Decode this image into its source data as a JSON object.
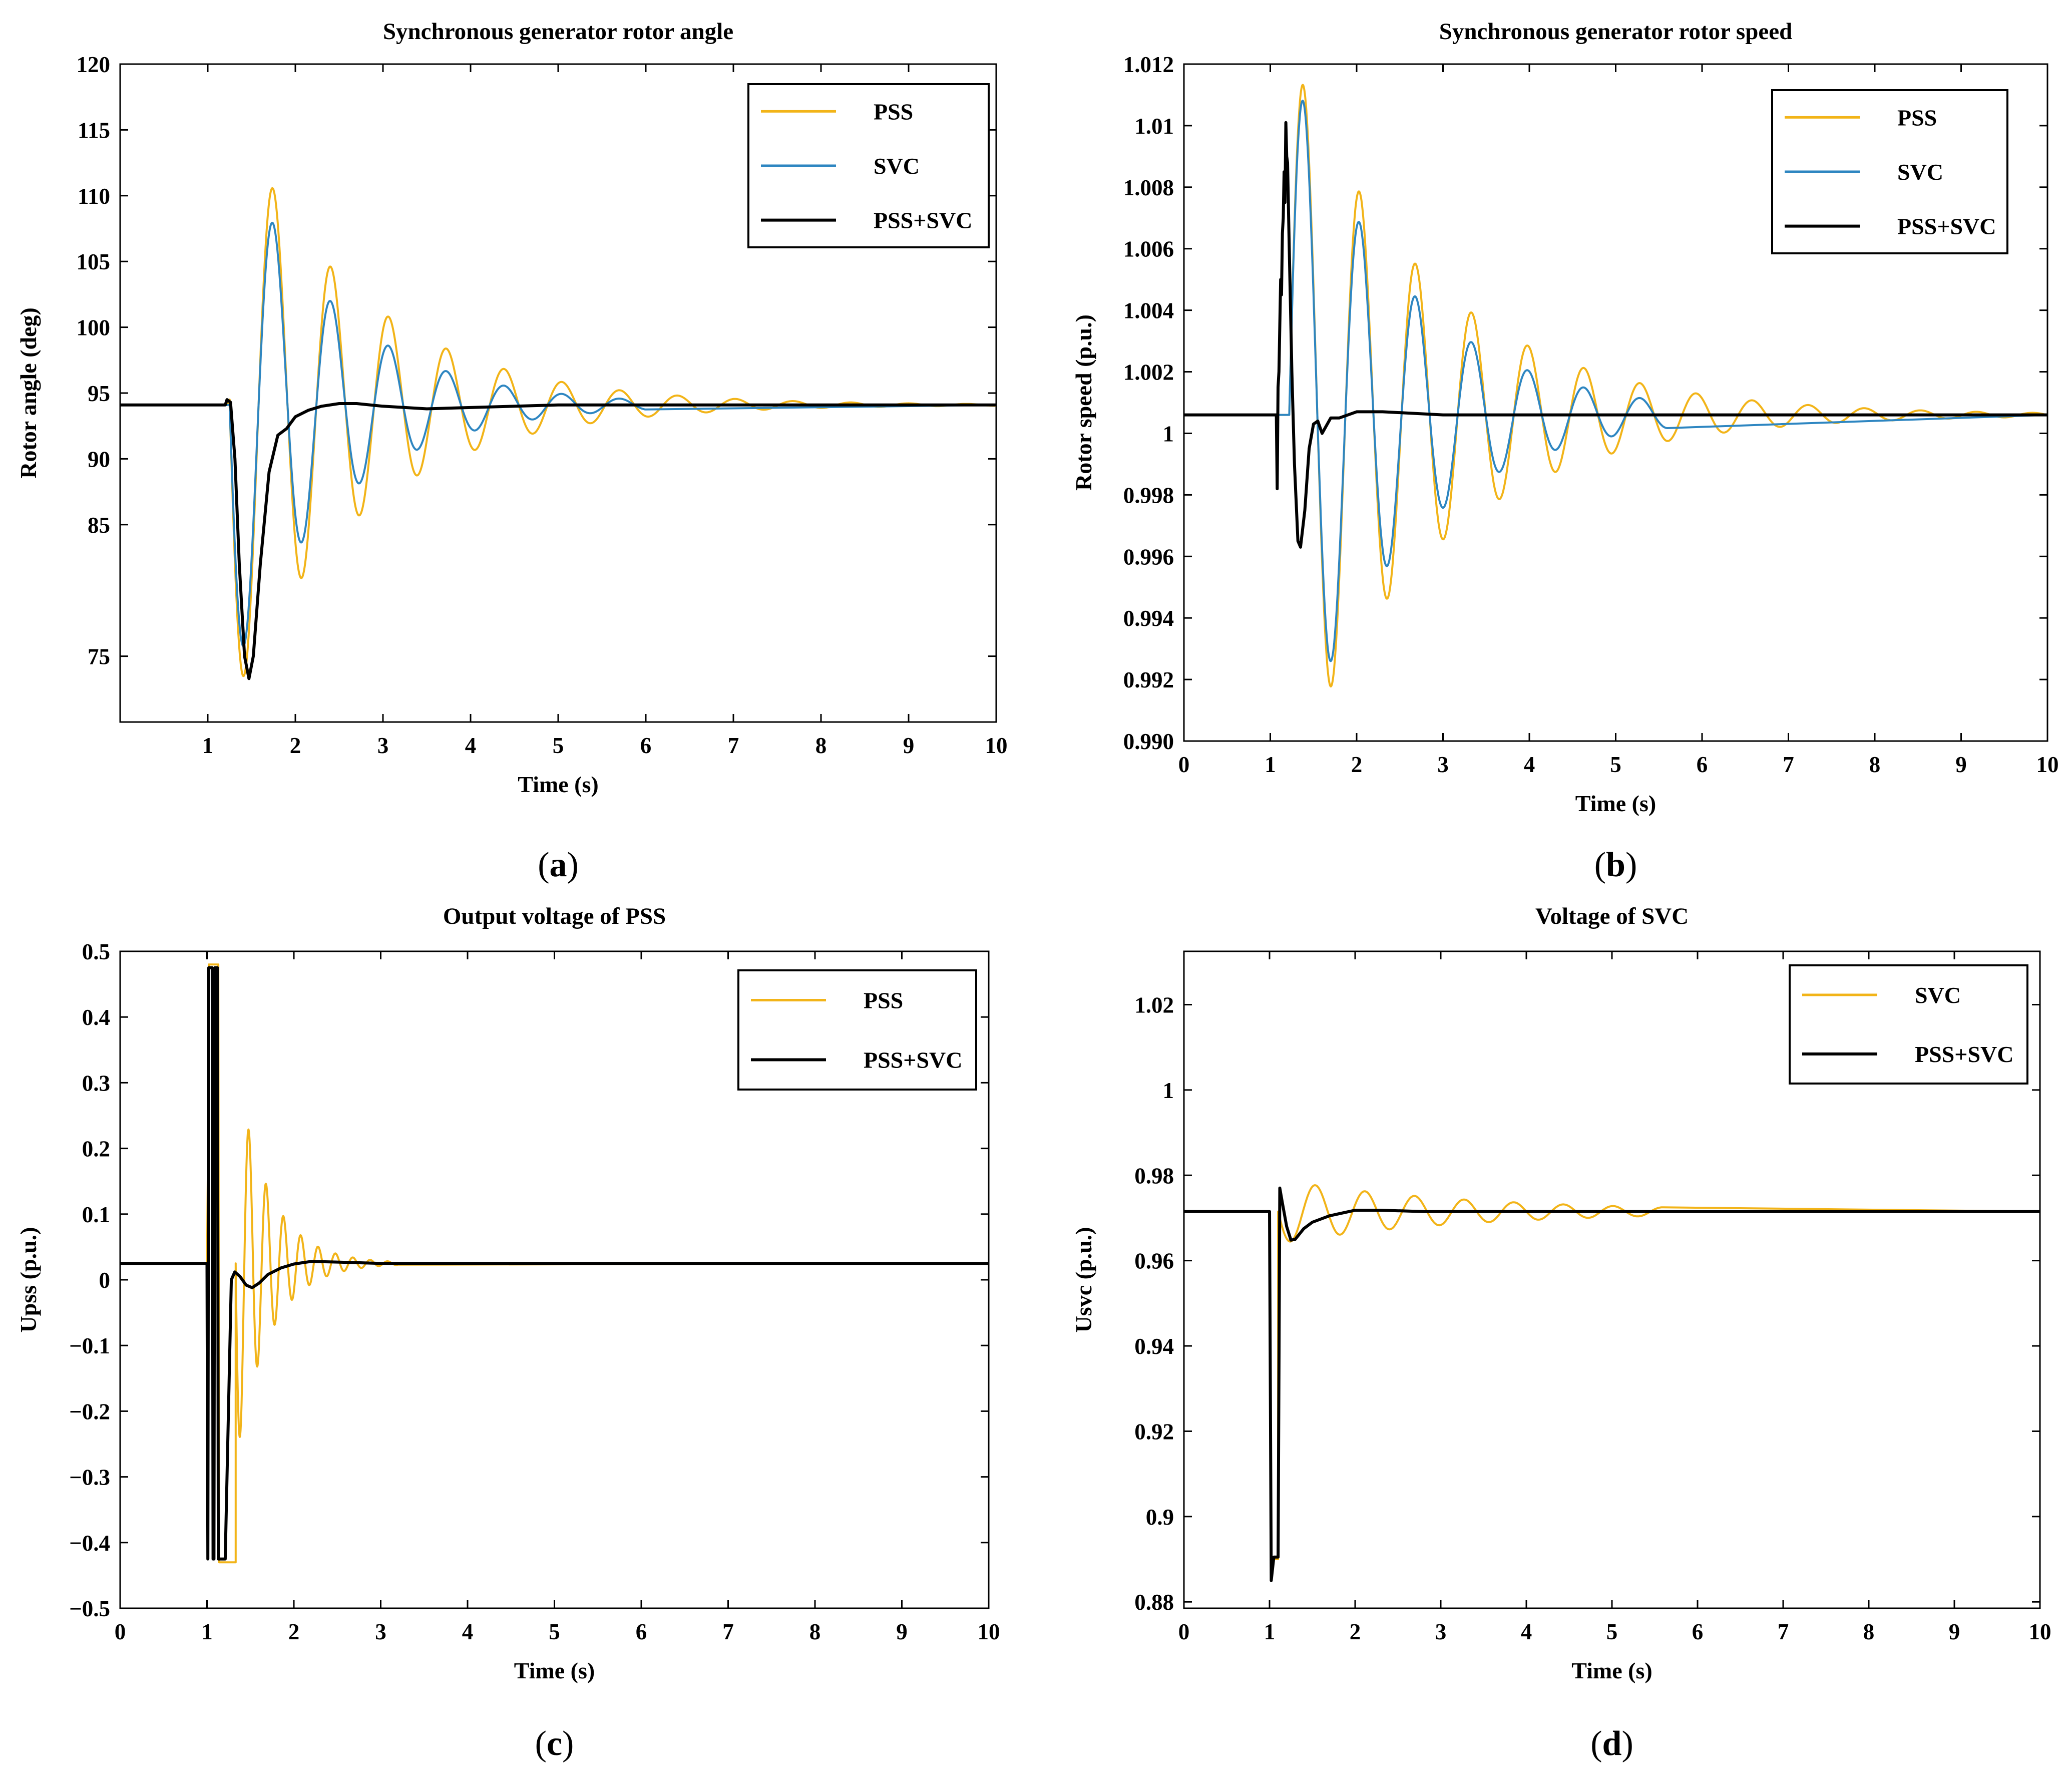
{
  "chart_data": [
    {
      "type": "line",
      "caption": "a",
      "title": "Synchronous generator rotor angle",
      "xlabel": "Time (s)",
      "ylabel": "Rotor angle (deg)",
      "xlim": [
        0,
        10
      ],
      "ylim": [
        70,
        120
      ],
      "xticks": [
        1,
        2,
        3,
        4,
        5,
        6,
        7,
        8,
        9,
        10
      ],
      "xticklabels": [
        "1",
        "2",
        "3",
        "4",
        "5",
        "6",
        "7",
        "8",
        "9",
        "10"
      ],
      "yticks": [
        75,
        85,
        90,
        95,
        100,
        105,
        110,
        115,
        120
      ],
      "yticklabels": [
        "75",
        "85",
        "90",
        "95",
        "100",
        "105",
        "110",
        "115",
        "120"
      ],
      "legend_position": "top-right",
      "series": [
        {
          "name": "PSS",
          "color": "#F2B418",
          "model": "osc",
          "base": 94.1,
          "t0": 1.25,
          "amp": 23,
          "period": 0.66,
          "decay": 0.68,
          "stop": 10,
          "extra": [
            [
              1.22,
              94.1
            ],
            [
              1.25,
              94.5
            ]
          ]
        },
        {
          "name": "SVC",
          "color": "#2E86C1",
          "model": "osc",
          "base": 94.1,
          "t0": 1.25,
          "amp": 21,
          "period": 0.66,
          "decay": 0.85,
          "stop": 6
        },
        {
          "name": "PSS+SVC",
          "color": "#000000",
          "points": [
            [
              0,
              94.1
            ],
            [
              1.2,
              94.1
            ],
            [
              1.22,
              94.5
            ],
            [
              1.26,
              94.3
            ],
            [
              1.31,
              90
            ],
            [
              1.36,
              82
            ],
            [
              1.42,
              75
            ],
            [
              1.47,
              73.3
            ],
            [
              1.52,
              75
            ],
            [
              1.6,
              82
            ],
            [
              1.7,
              89
            ],
            [
              1.8,
              91.8
            ],
            [
              1.9,
              92.3
            ],
            [
              2.0,
              93.2
            ],
            [
              2.15,
              93.7
            ],
            [
              2.3,
              94.0
            ],
            [
              2.5,
              94.2
            ],
            [
              2.7,
              94.2
            ],
            [
              3.0,
              94.0
            ],
            [
              3.5,
              93.8
            ],
            [
              4.0,
              93.9
            ],
            [
              5.0,
              94.1
            ],
            [
              10,
              94.1
            ]
          ]
        }
      ]
    },
    {
      "type": "line",
      "caption": "b",
      "title": "Synchronous generator rotor speed",
      "xlabel": "Time (s)",
      "ylabel": "Rotor speed (p.u.)",
      "xlim": [
        0,
        10
      ],
      "ylim": [
        0.99,
        1.012
      ],
      "xticks": [
        0,
        1,
        2,
        3,
        4,
        5,
        6,
        7,
        8,
        9,
        10
      ],
      "xticklabels": [
        "0",
        "1",
        "2",
        "3",
        "4",
        "5",
        "6",
        "7",
        "8",
        "9",
        "10"
      ],
      "yticks": [
        0.99,
        0.992,
        0.994,
        0.996,
        0.998,
        1.0,
        1.002,
        1.004,
        1.006,
        1.008,
        1.01,
        1.012
      ],
      "yticklabels": [
        "0.990",
        "0.992",
        "0.994",
        "0.996",
        "0.998",
        "1",
        "1.002",
        "1.004",
        "1.006",
        "1.008",
        "1.01",
        "1.012"
      ],
      "legend_position": "top-right",
      "series": [
        {
          "name": "PSS",
          "color": "#F2B418",
          "model": "osc",
          "base": 1.0006,
          "t0": 1.22,
          "amp": -0.0118,
          "period": 0.65,
          "decay": 0.6,
          "stop": 10
        },
        {
          "name": "SVC",
          "color": "#2E86C1",
          "model": "osc",
          "base": 1.0006,
          "t0": 1.22,
          "amp": -0.0115,
          "period": 0.65,
          "decay": 0.75,
          "stop": 5.6
        },
        {
          "name": "PSS+SVC",
          "color": "#000000",
          "points": [
            [
              0,
              1.0006
            ],
            [
              1.07,
              1.0006
            ],
            [
              1.08,
              0.9982
            ],
            [
              1.09,
              1.0015
            ],
            [
              1.1,
              1.002
            ],
            [
              1.11,
              1.0035
            ],
            [
              1.12,
              1.005
            ],
            [
              1.13,
              1.0045
            ],
            [
              1.14,
              1.0065
            ],
            [
              1.15,
              1.007
            ],
            [
              1.16,
              1.0085
            ],
            [
              1.17,
              1.0075
            ],
            [
              1.18,
              1.0101
            ],
            [
              1.19,
              1.009
            ],
            [
              1.2,
              1.0088
            ],
            [
              1.22,
              1.006
            ],
            [
              1.25,
              1.002
            ],
            [
              1.28,
              0.999
            ],
            [
              1.32,
              0.9965
            ],
            [
              1.35,
              0.9963
            ],
            [
              1.4,
              0.9975
            ],
            [
              1.45,
              0.9995
            ],
            [
              1.5,
              1.0003
            ],
            [
              1.55,
              1.0004
            ],
            [
              1.6,
              1.0
            ],
            [
              1.7,
              1.0005
            ],
            [
              1.8,
              1.0005
            ],
            [
              1.9,
              1.0006
            ],
            [
              2.0,
              1.0007
            ],
            [
              2.3,
              1.0007
            ],
            [
              3.0,
              1.0006
            ],
            [
              10,
              1.0006
            ]
          ]
        }
      ]
    },
    {
      "type": "line",
      "caption": "c",
      "title": "Output voltage of PSS",
      "xlabel": "Time (s)",
      "ylabel": "Upss (p.u.)",
      "xlim": [
        0,
        10
      ],
      "ylim": [
        -0.5,
        0.5
      ],
      "xticks": [
        0,
        1,
        2,
        3,
        4,
        5,
        6,
        7,
        8,
        9,
        10
      ],
      "xticklabels": [
        "0",
        "1",
        "2",
        "3",
        "4",
        "5",
        "6",
        "7",
        "8",
        "9",
        "10"
      ],
      "yticks": [
        -0.5,
        -0.4,
        -0.3,
        -0.2,
        -0.1,
        0,
        0.1,
        0.2,
        0.3,
        0.4,
        0.5
      ],
      "yticklabels": [
        "−0.5",
        "−0.4",
        "−0.3",
        "−0.2",
        "−0.1",
        "0",
        "0.1",
        "0.2",
        "0.3",
        "0.4",
        "0.5"
      ],
      "legend_position": "top-right",
      "series": [
        {
          "name": "PSS",
          "color": "#F2B418",
          "model": "osc",
          "base": 0.025,
          "t0": 1.33,
          "amp": 0.3,
          "period": 0.2,
          "decay": 2.6,
          "stop": 3.2,
          "prefix": [
            [
              0,
              0.025
            ],
            [
              1.0,
              0.025
            ],
            [
              1.01,
              0.17
            ],
            [
              1.02,
              0.48
            ],
            [
              1.13,
              0.48
            ],
            [
              1.14,
              -0.43
            ],
            [
              1.33,
              -0.43
            ]
          ]
        },
        {
          "name": "PSS+SVC",
          "color": "#000000",
          "points": [
            [
              0,
              0.025
            ],
            [
              1.0,
              0.025
            ],
            [
              1.01,
              -0.425
            ],
            [
              1.02,
              0.475
            ],
            [
              1.06,
              0.475
            ],
            [
              1.07,
              -0.425
            ],
            [
              1.08,
              -0.425
            ],
            [
              1.09,
              0.475
            ],
            [
              1.12,
              0.475
            ],
            [
              1.13,
              -0.425
            ],
            [
              1.21,
              -0.425
            ],
            [
              1.28,
              0.0
            ],
            [
              1.32,
              0.012
            ],
            [
              1.38,
              0.005
            ],
            [
              1.45,
              -0.008
            ],
            [
              1.52,
              -0.012
            ],
            [
              1.6,
              -0.005
            ],
            [
              1.7,
              0.008
            ],
            [
              1.85,
              0.018
            ],
            [
              2.0,
              0.024
            ],
            [
              2.2,
              0.028
            ],
            [
              2.5,
              0.027
            ],
            [
              3.0,
              0.025
            ],
            [
              10,
              0.025
            ]
          ]
        }
      ]
    },
    {
      "type": "line",
      "caption": "d",
      "title": "Voltage of SVC",
      "xlabel": "Time (s)",
      "ylabel": "Usvc (p.u.)",
      "xlim": [
        0,
        10
      ],
      "ylim": [
        0.8785,
        1.0325
      ],
      "xticks": [
        0,
        1,
        2,
        3,
        4,
        5,
        6,
        7,
        8,
        9,
        10
      ],
      "xticklabels": [
        "0",
        "1",
        "2",
        "3",
        "4",
        "5",
        "6",
        "7",
        "8",
        "9",
        "10"
      ],
      "yticks": [
        0.88,
        0.9,
        0.92,
        0.94,
        0.96,
        0.98,
        1.0,
        1.02
      ],
      "yticklabels": [
        "0.88",
        "0.9",
        "0.92",
        "0.94",
        "0.96",
        "0.98",
        "1",
        "1.02"
      ],
      "legend_position": "top-right",
      "series": [
        {
          "name": "SVC",
          "color": "#F2B418",
          "model": "osc",
          "base": 0.9715,
          "t0": 1.1,
          "amp": 0.0075,
          "period": 0.58,
          "decay": 0.45,
          "stop": 5.6,
          "prefix": [
            [
              0,
              0.9715
            ],
            [
              1.0,
              0.9715
            ],
            [
              1.02,
              0.885
            ],
            [
              1.05,
              0.89
            ],
            [
              1.1,
              0.89
            ]
          ]
        },
        {
          "name": "PSS+SVC",
          "color": "#000000",
          "points": [
            [
              0,
              0.9715
            ],
            [
              1.0,
              0.9715
            ],
            [
              1.02,
              0.885
            ],
            [
              1.05,
              0.8905
            ],
            [
              1.1,
              0.8905
            ],
            [
              1.12,
              0.977
            ],
            [
              1.15,
              0.9735
            ],
            [
              1.2,
              0.968
            ],
            [
              1.25,
              0.9648
            ],
            [
              1.3,
              0.965
            ],
            [
              1.4,
              0.9675
            ],
            [
              1.5,
              0.969
            ],
            [
              1.7,
              0.9705
            ],
            [
              2.0,
              0.9718
            ],
            [
              2.3,
              0.9718
            ],
            [
              2.8,
              0.9715
            ],
            [
              10,
              0.9715
            ]
          ]
        }
      ]
    }
  ]
}
